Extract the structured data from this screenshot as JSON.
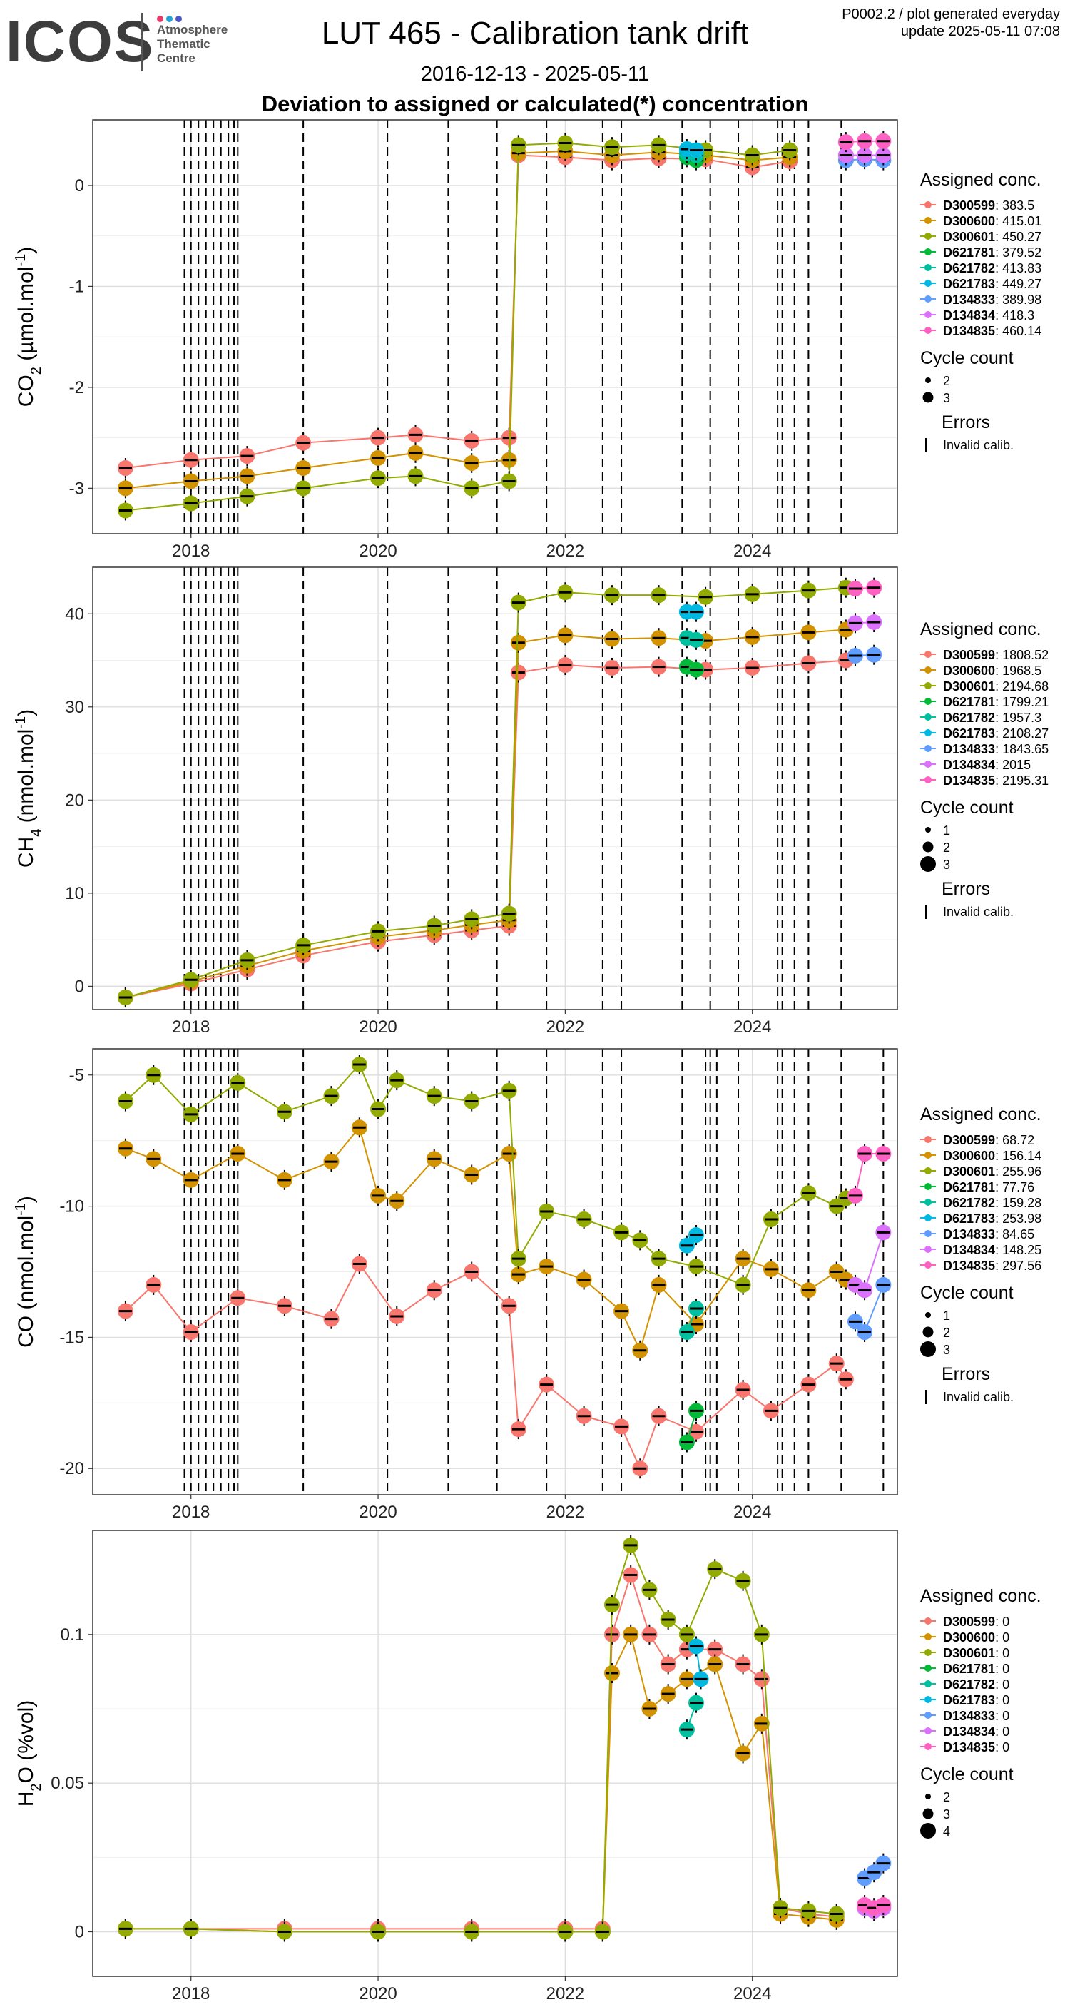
{
  "logo": {
    "word": "ICOS",
    "lines": [
      "Atmosphere",
      "Thematic",
      "Centre"
    ],
    "dot_colors": [
      "#e8396a",
      "#1fa2d6",
      "#4a56c6"
    ]
  },
  "header": {
    "title": "LUT 465 - Calibration tank drift",
    "date_range": "2016-12-13 - 2025-05-11",
    "subtitle": "Deviation to assigned or calculated(*) concentration",
    "meta_line1": "P0002.2 / plot generated everyday",
    "meta_line2": "update  2025-05-11 07:08"
  },
  "legend_titles": {
    "assigned": "Assigned conc.",
    "cycle": "Cycle count",
    "errors": "Errors",
    "invalid": "Invalid calib."
  },
  "series_colors": {
    "D300599": "#f8766d",
    "D300600": "#d39200",
    "D300601": "#93aa00",
    "D621781": "#00ba38",
    "D621782": "#00c19f",
    "D621783": "#00b9e3",
    "D134833": "#619cff",
    "D134834": "#db72fb",
    "D134835": "#ff61c3"
  },
  "chart_data": [
    {
      "type": "scatter",
      "ylabel": "CO2 (µmol.mol-1)",
      "x_ticks": [
        "2018",
        "2020",
        "2022",
        "2024"
      ],
      "y_ticks": [
        0,
        -1,
        -2,
        -3
      ],
      "xlim": [
        2016.95,
        2025.55
      ],
      "ylim": [
        -3.45,
        0.65
      ],
      "grid": true,
      "legend_position": "right",
      "cycle_counts": [
        "2",
        "3"
      ],
      "vlines": [
        2017.93,
        2018.0,
        2018.08,
        2018.16,
        2018.24,
        2018.32,
        2018.4,
        2018.46,
        2018.5,
        2019.2,
        2020.1,
        2020.75,
        2021.27,
        2021.8,
        2022.4,
        2022.6,
        2023.25,
        2023.55,
        2023.85,
        2024.27,
        2024.32,
        2024.45,
        2024.6,
        2024.95
      ],
      "series": [
        {
          "name": "D300599",
          "assigned": "383.5",
          "x": [
            2017.3,
            2018.0,
            2018.6,
            2019.2,
            2020.0,
            2020.4,
            2021.0,
            2021.4,
            2021.5,
            2022.0,
            2022.5,
            2023.0,
            2023.5,
            2024.0,
            2024.4
          ],
          "y": [
            -2.8,
            -2.72,
            -2.68,
            -2.55,
            -2.5,
            -2.47,
            -2.53,
            -2.5,
            0.3,
            0.28,
            0.25,
            0.27,
            0.26,
            0.18,
            0.24
          ]
        },
        {
          "name": "D300600",
          "assigned": "415.01",
          "x": [
            2017.3,
            2018.0,
            2018.6,
            2019.2,
            2020.0,
            2020.4,
            2021.0,
            2021.4,
            2021.5,
            2022.0,
            2022.5,
            2023.0,
            2023.5,
            2024.0,
            2024.4
          ],
          "y": [
            -3.0,
            -2.93,
            -2.88,
            -2.8,
            -2.7,
            -2.65,
            -2.75,
            -2.72,
            0.32,
            0.34,
            0.3,
            0.33,
            0.3,
            0.25,
            0.28
          ]
        },
        {
          "name": "D300601",
          "assigned": "450.27",
          "x": [
            2017.3,
            2018.0,
            2018.6,
            2019.2,
            2020.0,
            2020.4,
            2021.0,
            2021.4,
            2021.5,
            2022.0,
            2022.5,
            2023.0,
            2023.5,
            2024.0,
            2024.4
          ],
          "y": [
            -3.22,
            -3.15,
            -3.08,
            -3.0,
            -2.9,
            -2.88,
            -3.0,
            -2.93,
            0.4,
            0.42,
            0.38,
            0.4,
            0.35,
            0.3,
            0.35
          ]
        },
        {
          "name": "D621781",
          "assigned": "379.52",
          "x": [
            2023.3,
            2023.4
          ],
          "y": [
            0.28,
            0.25
          ]
        },
        {
          "name": "D621782",
          "assigned": "413.83",
          "x": [
            2023.3,
            2023.4
          ],
          "y": [
            0.32,
            0.3
          ]
        },
        {
          "name": "D621783",
          "assigned": "449.27",
          "x": [
            2023.3,
            2023.4
          ],
          "y": [
            0.36,
            0.35
          ]
        },
        {
          "name": "D134833",
          "assigned": "389.98",
          "x": [
            2025.0,
            2025.2,
            2025.4
          ],
          "y": [
            0.25,
            0.26,
            0.25
          ]
        },
        {
          "name": "D134834",
          "assigned": "418.3",
          "x": [
            2025.0,
            2025.2,
            2025.4
          ],
          "y": [
            0.3,
            0.3,
            0.3
          ]
        },
        {
          "name": "D134835",
          "assigned": "460.14",
          "x": [
            2025.0,
            2025.2,
            2025.4
          ],
          "y": [
            0.43,
            0.44,
            0.44
          ]
        }
      ]
    },
    {
      "type": "scatter",
      "ylabel": "CH4 (nmol.mol-1)",
      "x_ticks": [
        "2018",
        "2020",
        "2022",
        "2024"
      ],
      "y_ticks": [
        0,
        10,
        20,
        30,
        40
      ],
      "xlim": [
        2016.95,
        2025.55
      ],
      "ylim": [
        -2.5,
        45
      ],
      "grid": true,
      "legend_position": "right",
      "cycle_counts": [
        "1",
        "2",
        "3"
      ],
      "vlines": [
        2017.93,
        2018.0,
        2018.08,
        2018.16,
        2018.24,
        2018.32,
        2018.4,
        2018.46,
        2018.5,
        2019.2,
        2020.1,
        2020.75,
        2021.27,
        2021.8,
        2022.4,
        2022.6,
        2023.25,
        2023.55,
        2023.85,
        2024.27,
        2024.32,
        2024.45,
        2024.6,
        2024.95
      ],
      "series": [
        {
          "name": "D300599",
          "assigned": "1808.52",
          "x": [
            2017.3,
            2018.0,
            2018.6,
            2019.2,
            2020.0,
            2020.6,
            2021.0,
            2021.4,
            2021.5,
            2022.0,
            2022.5,
            2023.0,
            2023.5,
            2024.0,
            2024.6,
            2025.0
          ],
          "y": [
            -1.2,
            0.3,
            1.8,
            3.3,
            4.8,
            5.5,
            6.0,
            6.5,
            33.7,
            34.5,
            34.2,
            34.3,
            34.0,
            34.2,
            34.7,
            35.0
          ]
        },
        {
          "name": "D300600",
          "assigned": "1968.5",
          "x": [
            2017.3,
            2018.0,
            2018.6,
            2019.2,
            2020.0,
            2020.6,
            2021.0,
            2021.4,
            2021.5,
            2022.0,
            2022.5,
            2023.0,
            2023.5,
            2024.0,
            2024.6,
            2025.0
          ],
          "y": [
            -1.2,
            0.5,
            2.2,
            3.8,
            5.3,
            6.0,
            6.6,
            7.1,
            36.9,
            37.7,
            37.3,
            37.4,
            37.1,
            37.5,
            38.0,
            38.3
          ]
        },
        {
          "name": "D300601",
          "assigned": "2194.68",
          "x": [
            2017.3,
            2018.0,
            2018.6,
            2019.2,
            2020.0,
            2020.6,
            2021.0,
            2021.4,
            2021.5,
            2022.0,
            2022.5,
            2023.0,
            2023.5,
            2024.0,
            2024.6,
            2025.0
          ],
          "y": [
            -1.2,
            0.7,
            2.8,
            4.4,
            5.9,
            6.5,
            7.2,
            7.8,
            41.2,
            42.3,
            42.0,
            42.0,
            41.8,
            42.1,
            42.5,
            42.8
          ]
        },
        {
          "name": "D621781",
          "assigned": "1799.21",
          "x": [
            2023.3,
            2023.4
          ],
          "y": [
            34.3,
            34.0
          ]
        },
        {
          "name": "D621782",
          "assigned": "1957.3",
          "x": [
            2023.3,
            2023.4
          ],
          "y": [
            37.4,
            37.2
          ]
        },
        {
          "name": "D621783",
          "assigned": "2108.27",
          "x": [
            2023.3,
            2023.4
          ],
          "y": [
            40.2,
            40.2
          ]
        },
        {
          "name": "D134833",
          "assigned": "1843.65",
          "x": [
            2025.1,
            2025.3
          ],
          "y": [
            35.5,
            35.6
          ]
        },
        {
          "name": "D134834",
          "assigned": "2015",
          "x": [
            2025.1,
            2025.3
          ],
          "y": [
            39.0,
            39.1
          ]
        },
        {
          "name": "D134835",
          "assigned": "2195.31",
          "x": [
            2025.1,
            2025.3
          ],
          "y": [
            42.7,
            42.8
          ]
        }
      ]
    },
    {
      "type": "scatter",
      "ylabel": "CO (nmol.mol-1)",
      "x_ticks": [
        "2018",
        "2020",
        "2022",
        "2024"
      ],
      "y_ticks": [
        -5,
        -10,
        -15,
        -20
      ],
      "xlim": [
        2016.95,
        2025.55
      ],
      "ylim": [
        -21,
        -4
      ],
      "grid": true,
      "legend_position": "right",
      "cycle_counts": [
        "1",
        "2",
        "3"
      ],
      "vlines": [
        2017.93,
        2018.0,
        2018.08,
        2018.16,
        2018.24,
        2018.32,
        2018.4,
        2018.46,
        2018.5,
        2019.2,
        2020.1,
        2020.75,
        2021.27,
        2021.8,
        2022.4,
        2022.6,
        2023.25,
        2023.5,
        2023.55,
        2023.62,
        2023.85,
        2024.27,
        2024.32,
        2024.45,
        2024.6,
        2024.95,
        2025.4
      ],
      "series": [
        {
          "name": "D300599",
          "assigned": "68.72",
          "x": [
            2017.3,
            2017.6,
            2018.0,
            2018.5,
            2019.0,
            2019.5,
            2019.8,
            2020.2,
            2020.6,
            2021.0,
            2021.4,
            2021.5,
            2021.8,
            2022.2,
            2022.6,
            2022.8,
            2023.0,
            2023.4,
            2023.9,
            2024.2,
            2024.6,
            2024.9,
            2025.0
          ],
          "y": [
            -14.0,
            -13.0,
            -14.8,
            -13.5,
            -13.8,
            -14.3,
            -12.2,
            -14.2,
            -13.2,
            -12.5,
            -13.8,
            -18.5,
            -16.8,
            -18.0,
            -18.4,
            -20.0,
            -18.0,
            -18.6,
            -17.0,
            -17.8,
            -16.8,
            -16.0,
            -16.6
          ]
        },
        {
          "name": "D300600",
          "assigned": "156.14",
          "x": [
            2017.3,
            2017.6,
            2018.0,
            2018.5,
            2019.0,
            2019.5,
            2019.8,
            2020.0,
            2020.2,
            2020.6,
            2021.0,
            2021.4,
            2021.5,
            2021.8,
            2022.2,
            2022.6,
            2022.8,
            2023.0,
            2023.4,
            2023.9,
            2024.2,
            2024.6,
            2024.9,
            2025.0
          ],
          "y": [
            -7.8,
            -8.2,
            -9.0,
            -8.0,
            -9.0,
            -8.3,
            -7.0,
            -9.6,
            -9.8,
            -8.2,
            -8.8,
            -8.0,
            -12.6,
            -12.3,
            -12.8,
            -14.0,
            -15.5,
            -13.0,
            -14.5,
            -12.0,
            -12.4,
            -13.2,
            -12.5,
            -12.8
          ]
        },
        {
          "name": "D300601",
          "assigned": "255.96",
          "x": [
            2017.3,
            2017.6,
            2018.0,
            2018.5,
            2019.0,
            2019.5,
            2019.8,
            2020.0,
            2020.2,
            2020.6,
            2021.0,
            2021.4,
            2021.5,
            2021.8,
            2022.2,
            2022.6,
            2022.8,
            2023.0,
            2023.4,
            2023.9,
            2024.2,
            2024.6,
            2024.9,
            2025.0
          ],
          "y": [
            -6.0,
            -5.0,
            -6.5,
            -5.3,
            -6.4,
            -5.8,
            -4.6,
            -6.3,
            -5.2,
            -5.8,
            -6.0,
            -5.6,
            -12.0,
            -10.2,
            -10.5,
            -11.0,
            -11.3,
            -12.0,
            -12.3,
            -13.0,
            -10.5,
            -9.5,
            -10.0,
            -9.7
          ]
        },
        {
          "name": "D621781",
          "assigned": "77.76",
          "x": [
            2023.3,
            2023.4
          ],
          "y": [
            -19.0,
            -17.8
          ]
        },
        {
          "name": "D621782",
          "assigned": "159.28",
          "x": [
            2023.3,
            2023.4
          ],
          "y": [
            -14.8,
            -13.9
          ]
        },
        {
          "name": "D621783",
          "assigned": "253.98",
          "x": [
            2023.3,
            2023.4
          ],
          "y": [
            -11.5,
            -11.1
          ]
        },
        {
          "name": "D134833",
          "assigned": "84.65",
          "x": [
            2025.1,
            2025.2,
            2025.4
          ],
          "y": [
            -14.4,
            -14.8,
            -13.0
          ]
        },
        {
          "name": "D134834",
          "assigned": "148.25",
          "x": [
            2025.1,
            2025.2,
            2025.4
          ],
          "y": [
            -13.0,
            -13.2,
            -11.0
          ]
        },
        {
          "name": "D134835",
          "assigned": "297.56",
          "x": [
            2025.1,
            2025.2,
            2025.4
          ],
          "y": [
            -9.6,
            -8.0,
            -8.0
          ]
        }
      ]
    },
    {
      "type": "scatter",
      "ylabel": "H2O (%vol)",
      "x_ticks": [
        "2018",
        "2020",
        "2022",
        "2024"
      ],
      "y_ticks": [
        0.0,
        0.05,
        0.1
      ],
      "xlim": [
        2016.95,
        2025.55
      ],
      "ylim": [
        -0.015,
        0.135
      ],
      "grid": true,
      "legend_position": "right",
      "cycle_counts": [
        "2",
        "3",
        "4"
      ],
      "vlines": [],
      "series": [
        {
          "name": "D300599",
          "assigned": "0",
          "x": [
            2017.3,
            2018.0,
            2019.0,
            2020.0,
            2021.0,
            2022.0,
            2022.4,
            2022.5,
            2022.7,
            2022.9,
            2023.1,
            2023.3,
            2023.6,
            2023.9,
            2024.1,
            2024.3,
            2024.6,
            2024.9
          ],
          "y": [
            0.001,
            0.001,
            0.001,
            0.001,
            0.001,
            0.001,
            0.001,
            0.1,
            0.12,
            0.1,
            0.09,
            0.095,
            0.095,
            0.09,
            0.085,
            0.008,
            0.006,
            0.005
          ]
        },
        {
          "name": "D300600",
          "assigned": "0",
          "x": [
            2017.3,
            2018.0,
            2019.0,
            2020.0,
            2021.0,
            2022.0,
            2022.4,
            2022.5,
            2022.7,
            2022.9,
            2023.1,
            2023.3,
            2023.6,
            2023.9,
            2024.1,
            2024.3,
            2024.6,
            2024.9
          ],
          "y": [
            0.001,
            0.001,
            0.0,
            0.0,
            0.0,
            0.0,
            0.0,
            0.087,
            0.1,
            0.075,
            0.08,
            0.085,
            0.09,
            0.06,
            0.07,
            0.006,
            0.005,
            0.004
          ]
        },
        {
          "name": "D300601",
          "assigned": "0",
          "x": [
            2017.3,
            2018.0,
            2019.0,
            2020.0,
            2021.0,
            2022.0,
            2022.4,
            2022.5,
            2022.7,
            2022.9,
            2023.1,
            2023.3,
            2023.6,
            2023.9,
            2024.1,
            2024.3,
            2024.6,
            2024.9
          ],
          "y": [
            0.001,
            0.001,
            0.0,
            0.0,
            0.0,
            0.0,
            0.0,
            0.11,
            0.13,
            0.115,
            0.105,
            0.1,
            0.122,
            0.118,
            0.1,
            0.008,
            0.007,
            0.006
          ]
        },
        {
          "name": "D621781",
          "assigned": "0",
          "x": [],
          "y": []
        },
        {
          "name": "D621782",
          "assigned": "0",
          "x": [
            2023.3,
            2023.4
          ],
          "y": [
            0.068,
            0.077
          ]
        },
        {
          "name": "D621783",
          "assigned": "0",
          "x": [
            2023.4,
            2023.45
          ],
          "y": [
            0.096,
            0.085
          ]
        },
        {
          "name": "D134833",
          "assigned": "0",
          "x": [
            2025.2,
            2025.3,
            2025.4
          ],
          "y": [
            0.018,
            0.02,
            0.023
          ]
        },
        {
          "name": "D134834",
          "assigned": "0",
          "x": [
            2025.2,
            2025.3,
            2025.4
          ],
          "y": [
            0.008,
            0.007,
            0.008
          ]
        },
        {
          "name": "D134835",
          "assigned": "0",
          "x": [
            2025.2,
            2025.3,
            2025.4
          ],
          "y": [
            0.009,
            0.008,
            0.009
          ]
        }
      ]
    }
  ]
}
